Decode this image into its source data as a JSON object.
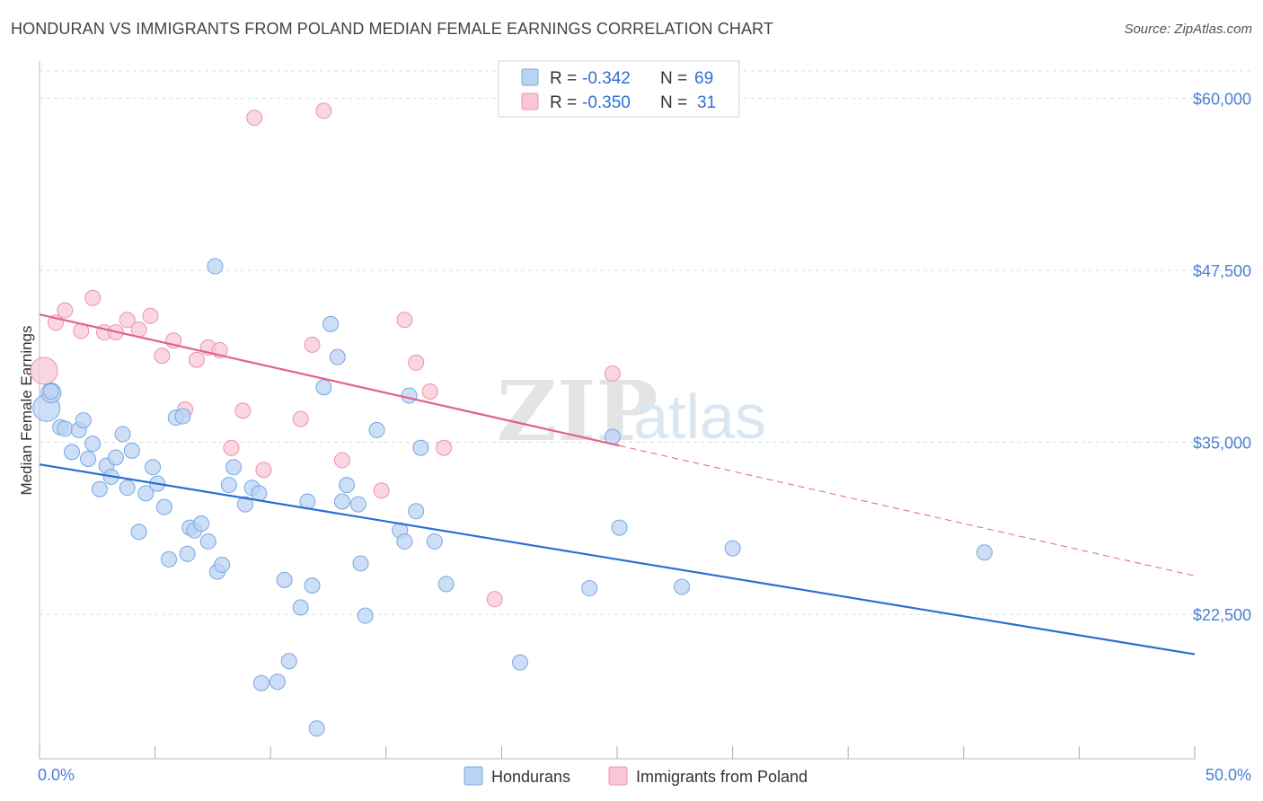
{
  "title": "HONDURAN VS IMMIGRANTS FROM POLAND MEDIAN FEMALE EARNINGS CORRELATION CHART",
  "source": "Source: ZipAtlas.com",
  "watermark": {
    "zip": "ZIP",
    "atlas": "atlas"
  },
  "legend": {
    "r_label": "R =",
    "n_label": "N =",
    "rows": [
      {
        "r": "-0.342",
        "n": "69"
      },
      {
        "r": "-0.350",
        "n": "31"
      }
    ]
  },
  "colors": {
    "hondurans_fill": "#b9d3f3",
    "hondurans_stroke": "#7aa6e3",
    "hondurans_line": "#2a6fd2",
    "poland_fill": "#f8c6d4",
    "poland_stroke": "#ec93ad",
    "poland_line": "#e0638a",
    "axis_labels": "#4a7fd4",
    "grid": "#dddddd"
  },
  "chart_data": {
    "type": "scatter",
    "title": "HONDURAN VS IMMIGRANTS FROM POLAND MEDIAN FEMALE EARNINGS CORRELATION CHART",
    "xlabel": "",
    "ylabel": "Median Female Earnings",
    "xlim": [
      0,
      50
    ],
    "ylim": [
      12000,
      62000
    ],
    "x_tick_labels": [
      "0.0%",
      "50.0%"
    ],
    "y_ticks": [
      {
        "value": 22500,
        "label": "$22,500"
      },
      {
        "value": 35000,
        "label": "$35,000"
      },
      {
        "value": 47500,
        "label": "$47,500"
      },
      {
        "value": 60000,
        "label": "$60,000"
      }
    ],
    "grid": true,
    "legend_position": "top-center",
    "series": [
      {
        "name": "Hondurans",
        "r": -0.342,
        "n": 69,
        "trend": {
          "x0": 0,
          "y0": 33400,
          "x1": 50,
          "y1": 19600,
          "solid_until": 50
        },
        "points": [
          [
            0.3,
            37.5,
            3
          ],
          [
            0.5,
            38.6,
            2
          ],
          [
            0.5,
            38.7,
            1
          ],
          [
            0.9,
            36.1,
            1
          ],
          [
            1.1,
            36.0,
            1
          ],
          [
            1.4,
            34.3,
            1
          ],
          [
            1.7,
            35.9,
            1
          ],
          [
            1.9,
            36.6,
            1
          ],
          [
            2.1,
            33.8,
            1
          ],
          [
            2.3,
            34.9,
            1
          ],
          [
            2.6,
            31.6,
            1
          ],
          [
            2.9,
            33.3,
            1
          ],
          [
            3.1,
            32.5,
            1
          ],
          [
            3.3,
            33.9,
            1
          ],
          [
            3.6,
            35.6,
            1
          ],
          [
            3.8,
            31.7,
            1
          ],
          [
            4.0,
            34.4,
            1
          ],
          [
            4.3,
            28.5,
            1
          ],
          [
            4.6,
            31.3,
            1
          ],
          [
            4.9,
            33.2,
            1
          ],
          [
            5.1,
            32.0,
            1
          ],
          [
            5.4,
            30.3,
            1
          ],
          [
            5.6,
            26.5,
            1
          ],
          [
            5.9,
            36.8,
            1
          ],
          [
            6.2,
            36.9,
            1
          ],
          [
            6.4,
            26.9,
            1
          ],
          [
            6.5,
            28.8,
            1
          ],
          [
            6.7,
            28.6,
            1
          ],
          [
            7.0,
            29.1,
            1
          ],
          [
            7.3,
            27.8,
            1
          ],
          [
            7.6,
            47.8,
            1
          ],
          [
            7.7,
            25.6,
            1
          ],
          [
            7.9,
            26.1,
            1
          ],
          [
            8.2,
            31.9,
            1
          ],
          [
            8.4,
            33.2,
            1
          ],
          [
            8.9,
            30.5,
            1
          ],
          [
            9.2,
            31.7,
            1
          ],
          [
            9.5,
            31.3,
            1
          ],
          [
            9.6,
            17.5,
            1
          ],
          [
            10.3,
            17.6,
            1
          ],
          [
            10.6,
            25.0,
            1
          ],
          [
            10.8,
            19.1,
            1
          ],
          [
            11.3,
            23.0,
            1
          ],
          [
            11.6,
            30.7,
            1
          ],
          [
            11.8,
            24.6,
            1
          ],
          [
            12.0,
            14.2,
            1
          ],
          [
            12.3,
            39.0,
            1
          ],
          [
            12.6,
            43.6,
            1
          ],
          [
            12.9,
            41.2,
            1
          ],
          [
            13.1,
            30.7,
            1
          ],
          [
            13.3,
            31.9,
            1
          ],
          [
            13.8,
            30.5,
            1
          ],
          [
            13.9,
            26.2,
            1
          ],
          [
            14.1,
            22.4,
            1
          ],
          [
            14.6,
            35.9,
            1
          ],
          [
            15.6,
            28.6,
            1
          ],
          [
            15.8,
            27.8,
            1
          ],
          [
            16.0,
            38.4,
            1
          ],
          [
            16.3,
            30.0,
            1
          ],
          [
            16.5,
            34.6,
            1
          ],
          [
            17.1,
            27.8,
            1
          ],
          [
            17.6,
            24.7,
            1
          ],
          [
            20.8,
            19.0,
            1
          ],
          [
            23.8,
            24.4,
            1
          ],
          [
            24.8,
            35.4,
            1
          ],
          [
            25.1,
            28.8,
            1
          ],
          [
            27.8,
            24.5,
            1
          ],
          [
            30.0,
            27.3,
            1
          ],
          [
            40.9,
            27.0,
            1
          ]
        ]
      },
      {
        "name": "Immigrants from Poland",
        "r": -0.35,
        "n": 31,
        "trend": {
          "x0": 0,
          "y0": 44300,
          "x1": 50,
          "y1": 25300,
          "solid_until": 25.1
        },
        "points": [
          [
            0.2,
            40.2,
            3
          ],
          [
            0.7,
            43.7,
            1
          ],
          [
            1.1,
            44.6,
            1
          ],
          [
            1.8,
            43.1,
            1
          ],
          [
            2.3,
            45.5,
            1
          ],
          [
            2.8,
            43.0,
            1
          ],
          [
            3.3,
            43.0,
            1
          ],
          [
            3.8,
            43.9,
            1
          ],
          [
            4.3,
            43.2,
            1
          ],
          [
            4.8,
            44.2,
            1
          ],
          [
            5.3,
            41.3,
            1
          ],
          [
            5.8,
            42.4,
            1
          ],
          [
            6.3,
            37.4,
            1
          ],
          [
            6.8,
            41.0,
            1
          ],
          [
            7.3,
            41.9,
            1
          ],
          [
            7.8,
            41.7,
            1
          ],
          [
            8.3,
            34.6,
            1
          ],
          [
            8.8,
            37.3,
            1
          ],
          [
            9.3,
            58.6,
            1
          ],
          [
            9.7,
            33.0,
            1
          ],
          [
            11.3,
            36.7,
            1
          ],
          [
            11.8,
            42.1,
            1
          ],
          [
            12.3,
            59.1,
            1
          ],
          [
            13.1,
            33.7,
            1
          ],
          [
            14.8,
            31.5,
            1
          ],
          [
            15.8,
            43.9,
            1
          ],
          [
            16.3,
            40.8,
            1
          ],
          [
            16.9,
            38.7,
            1
          ],
          [
            17.5,
            34.6,
            1
          ],
          [
            19.7,
            23.6,
            1
          ],
          [
            24.8,
            40.0,
            1
          ]
        ]
      }
    ]
  }
}
